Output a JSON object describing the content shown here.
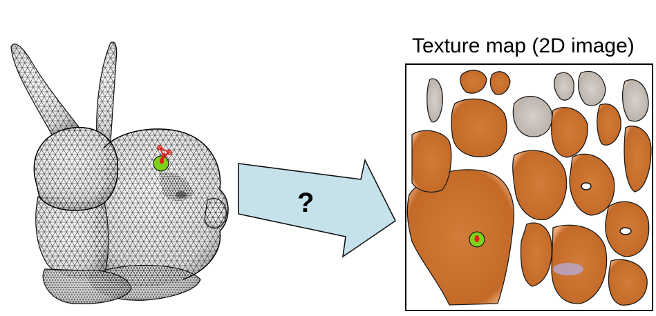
{
  "figure": {
    "texture_title": "Texture map (2D image)",
    "arrow_label": "?"
  },
  "colors": {
    "mesh_fill": "#f2f2f2",
    "mesh_line": "#1a1a1a",
    "arrow_fill": "#c5e2eb",
    "arrow_stroke": "#111111",
    "patch_orange": "#c8702e",
    "patch_grey": "#c9c2bb",
    "marker_green": "#7cd11a",
    "marker_red": "#e0201a"
  },
  "icons": [
    "bunny-mesh-image",
    "texture-atlas-image",
    "mapping-arrow"
  ]
}
